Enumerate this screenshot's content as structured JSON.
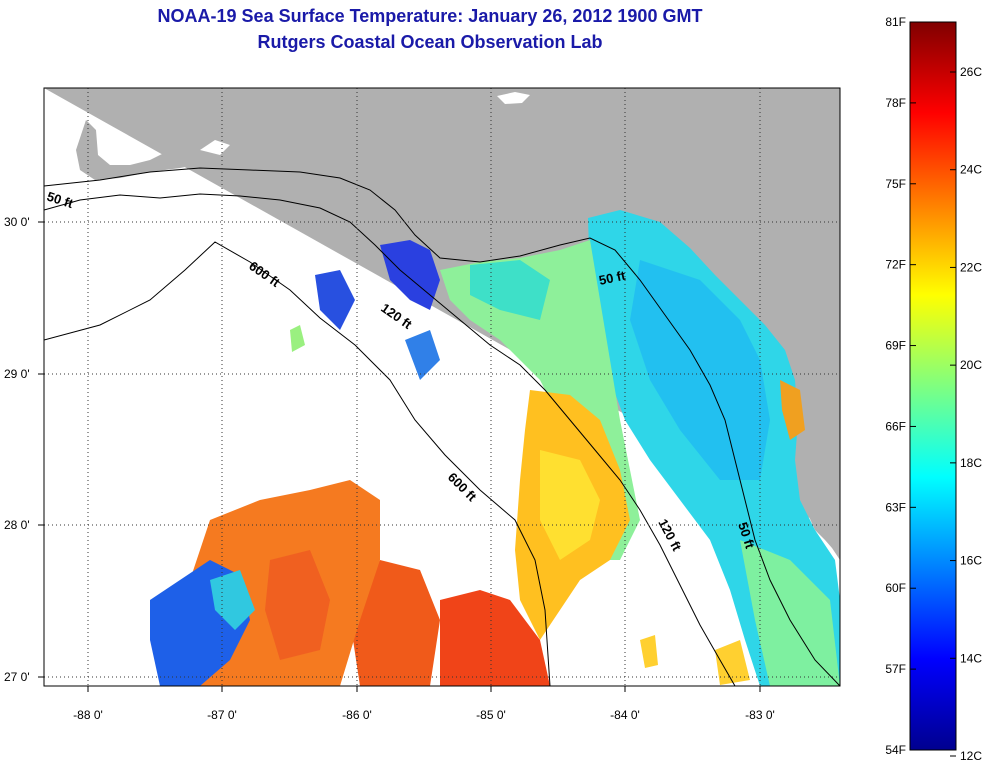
{
  "title": "NOAA-19 Sea Surface Temperature:  January 26, 2012 1900 GMT",
  "subtitle": "Rutgers Coastal Ocean Observation Lab",
  "map": {
    "lon_ticks": [
      "-88 0'",
      "-87 0'",
      "-86 0'",
      "-85 0'",
      "-84 0'",
      "-83 0'"
    ],
    "lat_ticks": [
      "30 0'",
      "29 0'",
      "28 0'",
      "27 0'"
    ],
    "contours": [
      {
        "label": "50 ft"
      },
      {
        "label": "600 ft"
      },
      {
        "label": "120 ft"
      },
      {
        "label": "50 ft"
      },
      {
        "label": "600 ft"
      },
      {
        "label": "120 ft"
      },
      {
        "label": "50 ft"
      }
    ],
    "land_color": "#b0b0b0",
    "grid": true
  },
  "colorbar": {
    "f_labels": [
      "81F",
      "78F",
      "75F",
      "72F",
      "69F",
      "66F",
      "63F",
      "60F",
      "57F",
      "54F"
    ],
    "c_labels": [
      "26C",
      "24C",
      "22C",
      "20C",
      "18C",
      "16C",
      "14C",
      "12C"
    ]
  }
}
